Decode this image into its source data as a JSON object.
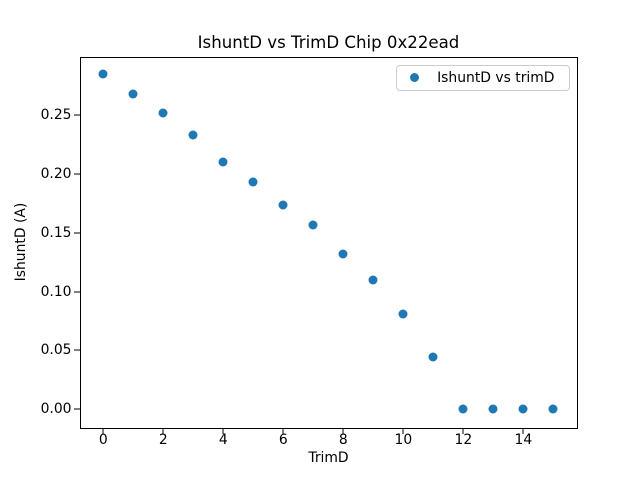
{
  "chart_data": {
    "type": "scatter",
    "title": "IshuntD vs TrimD Chip 0x22ead",
    "xlabel": "TrimD",
    "ylabel": "IshuntD (A)",
    "legend": {
      "label": "IshuntD vs trimD",
      "position": "upper right"
    },
    "x": [
      0,
      1,
      2,
      3,
      4,
      5,
      6,
      7,
      8,
      9,
      10,
      11,
      12,
      13,
      14,
      15
    ],
    "y": [
      0.285,
      0.268,
      0.252,
      0.233,
      0.21,
      0.193,
      0.174,
      0.157,
      0.132,
      0.11,
      0.081,
      0.044,
      0.0,
      0.0,
      0.0,
      0.0
    ],
    "xlim": [
      -0.76,
      15.77
    ],
    "ylim": [
      -0.0157,
      0.2992
    ],
    "xticks": [
      0,
      2,
      4,
      6,
      8,
      10,
      12,
      14
    ],
    "yticks": [
      0.0,
      0.05,
      0.1,
      0.15,
      0.2,
      0.25
    ],
    "grid": false,
    "marker_color": "#1f77b4",
    "frame_color": "#000000"
  }
}
